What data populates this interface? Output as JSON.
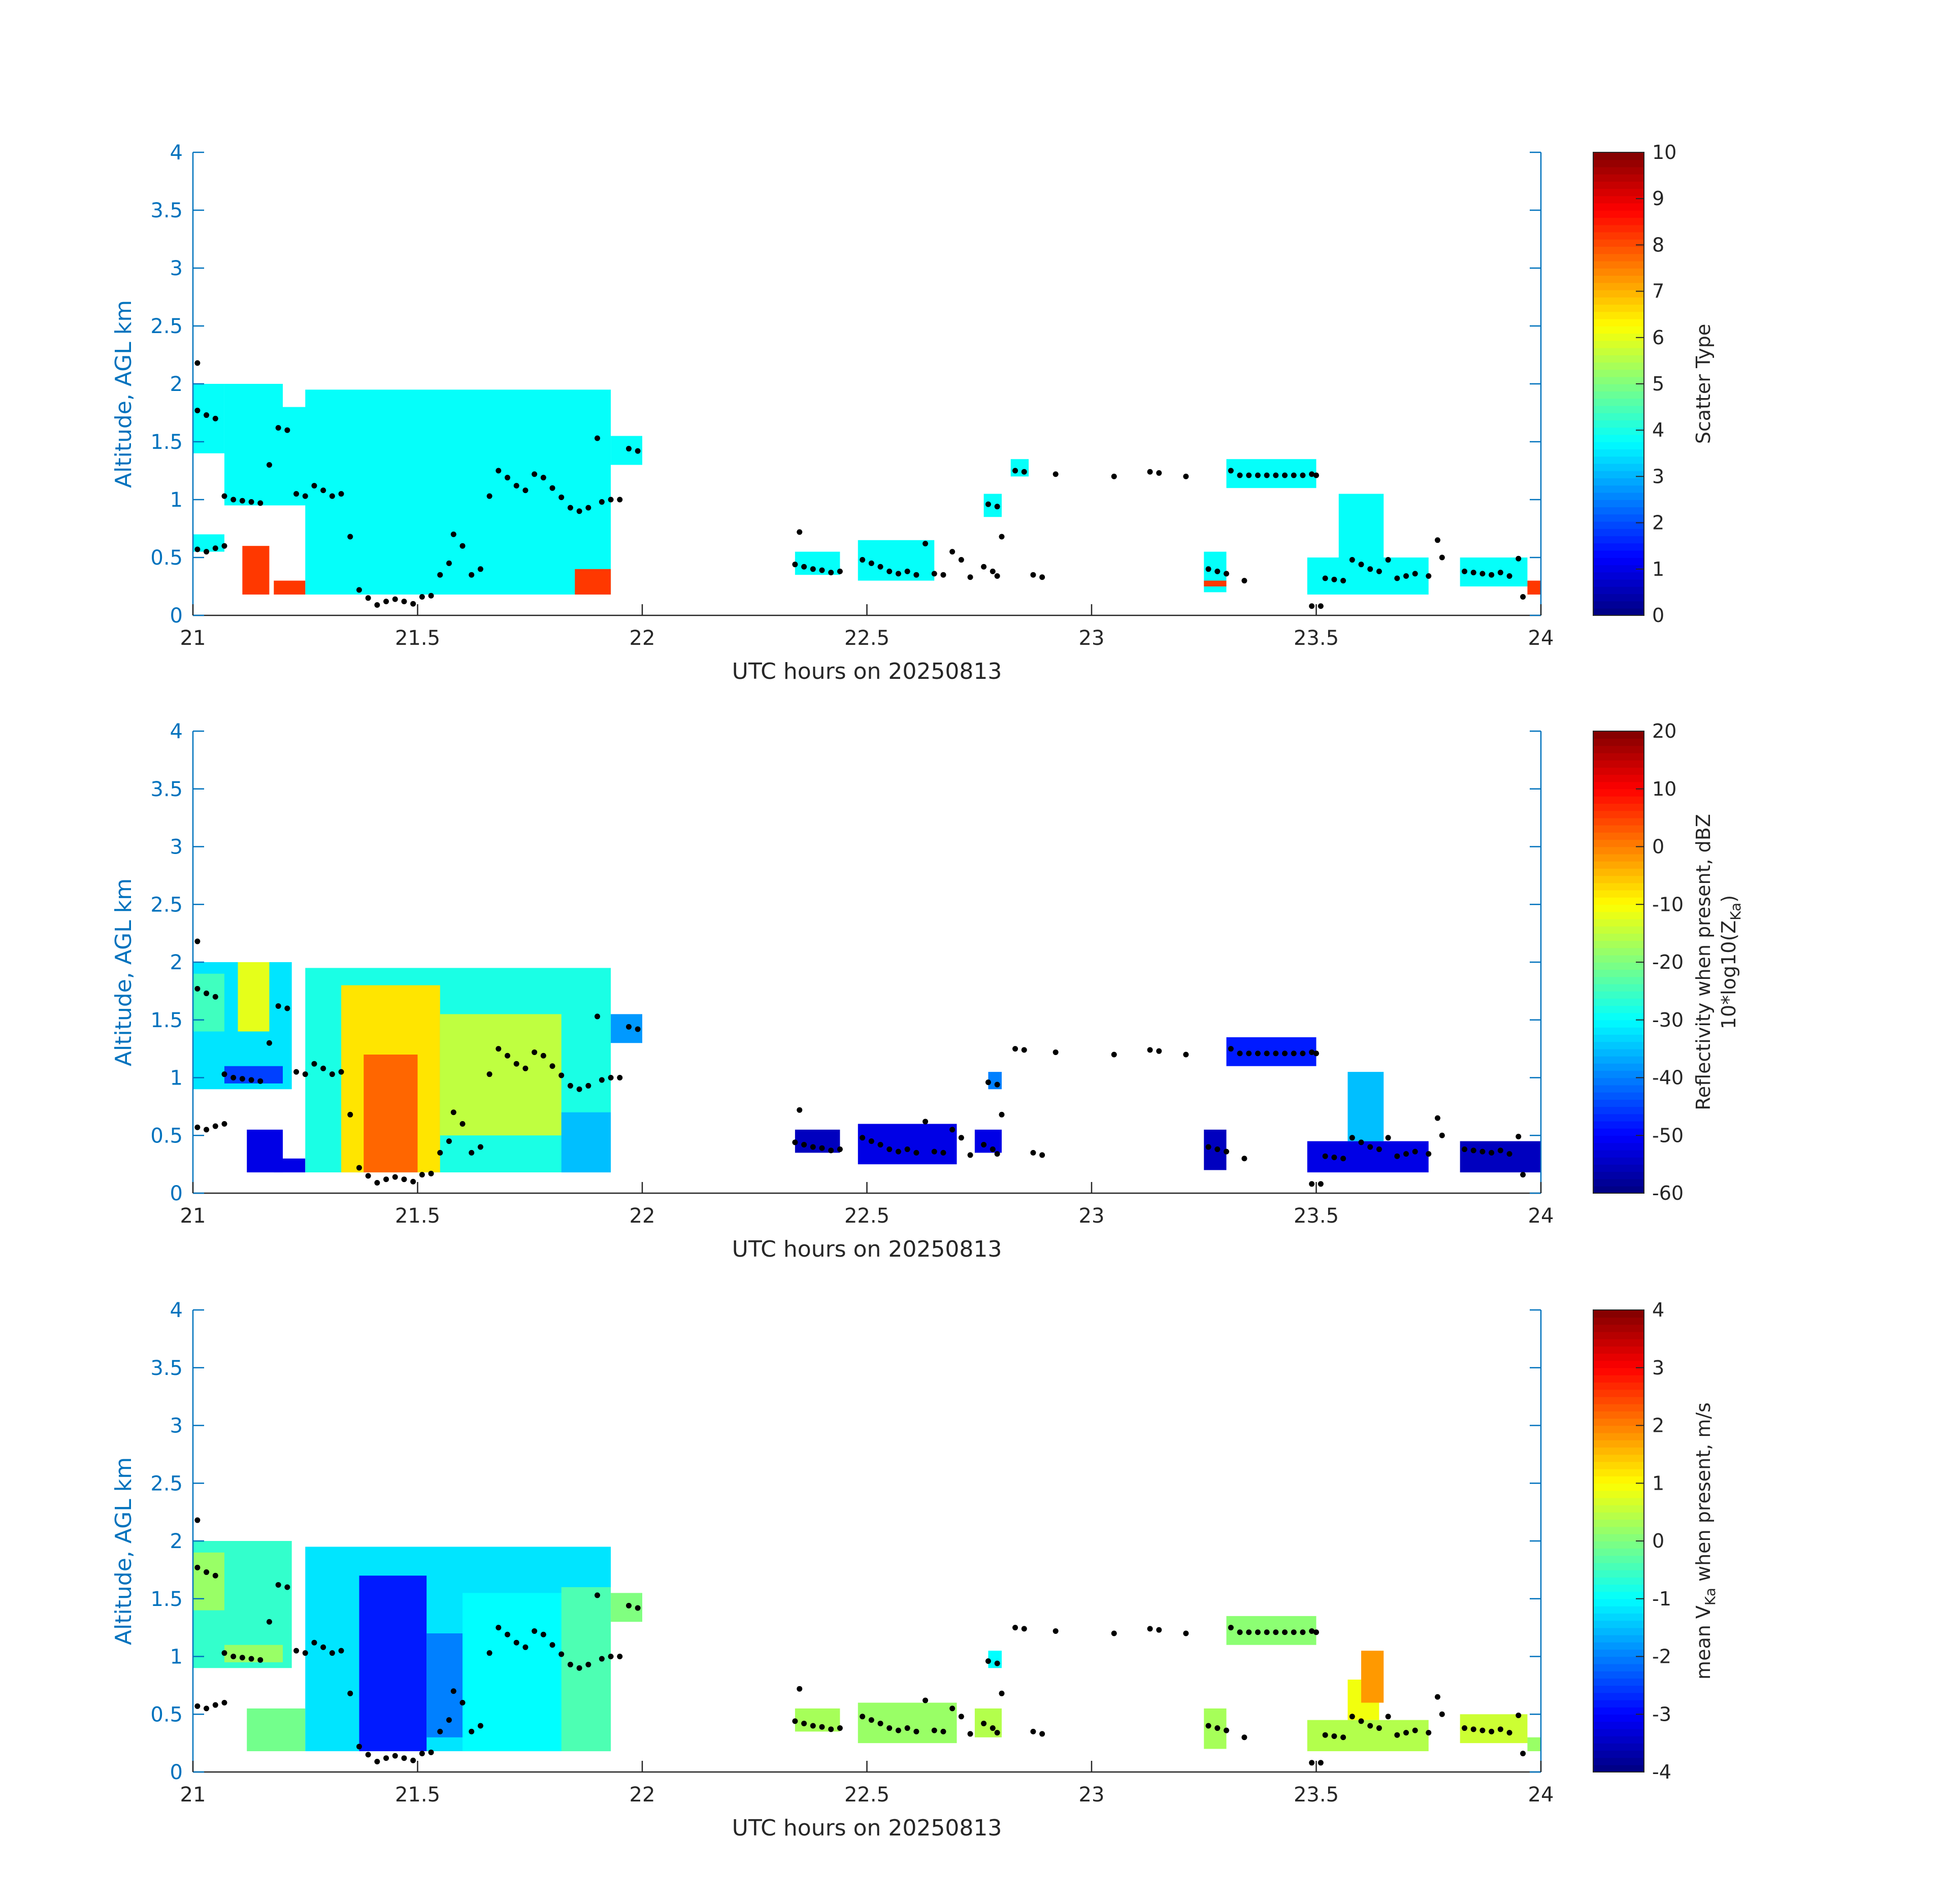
{
  "chart_data": [
    {
      "type": "heatmap",
      "title": "",
      "xlabel": "UTC hours on 20250813",
      "ylabel": "Altitude, AGL km",
      "xlim": [
        21,
        24
      ],
      "ylim": [
        0,
        4
      ],
      "xticks": [
        "21",
        "21.5",
        "22",
        "22.5",
        "23",
        "23.5",
        "24"
      ],
      "yticks": [
        "0",
        "0.5",
        "1",
        "1.5",
        "2",
        "2.5",
        "3",
        "3.5",
        "4"
      ],
      "colorbar": {
        "label": "Scatter Type",
        "range": [
          0,
          10
        ],
        "ticks": [
          "0",
          "1",
          "2",
          "3",
          "4",
          "5",
          "6",
          "7",
          "8",
          "9",
          "10"
        ],
        "colormap": "jet"
      },
      "regions": [
        {
          "t0": 21.0,
          "t1": 21.07,
          "z0": 1.4,
          "z1": 2.0,
          "v": 3.8
        },
        {
          "t0": 21.0,
          "t1": 21.07,
          "z0": 0.55,
          "z1": 0.7,
          "v": 3.8
        },
        {
          "t0": 21.07,
          "t1": 21.2,
          "z0": 0.95,
          "z1": 2.0,
          "v": 3.8
        },
        {
          "t0": 21.2,
          "t1": 21.35,
          "z0": 0.95,
          "z1": 1.8,
          "v": 3.8
        },
        {
          "t0": 21.25,
          "t1": 21.93,
          "z0": 0.18,
          "z1": 1.95,
          "v": 3.8
        },
        {
          "t0": 21.93,
          "t1": 22.0,
          "z0": 1.3,
          "z1": 1.55,
          "v": 3.8
        },
        {
          "t0": 21.11,
          "t1": 21.17,
          "z0": 0.18,
          "z1": 0.6,
          "v": 8.2
        },
        {
          "t0": 21.18,
          "t1": 21.25,
          "z0": 0.18,
          "z1": 0.3,
          "v": 8.2
        },
        {
          "t0": 21.85,
          "t1": 21.93,
          "z0": 0.18,
          "z1": 0.4,
          "v": 8.2
        },
        {
          "t0": 22.34,
          "t1": 22.44,
          "z0": 0.35,
          "z1": 0.55,
          "v": 3.8
        },
        {
          "t0": 22.48,
          "t1": 22.65,
          "z0": 0.3,
          "z1": 0.65,
          "v": 3.8
        },
        {
          "t0": 22.76,
          "t1": 22.8,
          "z0": 0.85,
          "z1": 1.05,
          "v": 3.8
        },
        {
          "t0": 22.82,
          "t1": 22.86,
          "z0": 1.2,
          "z1": 1.35,
          "v": 3.8
        },
        {
          "t0": 23.25,
          "t1": 23.3,
          "z0": 0.2,
          "z1": 0.55,
          "v": 3.8
        },
        {
          "t0": 23.3,
          "t1": 23.5,
          "z0": 1.1,
          "z1": 1.35,
          "v": 3.8
        },
        {
          "t0": 23.48,
          "t1": 23.75,
          "z0": 0.18,
          "z1": 0.5,
          "v": 3.8
        },
        {
          "t0": 23.55,
          "t1": 23.65,
          "z0": 0.5,
          "z1": 1.05,
          "v": 3.8
        },
        {
          "t0": 23.82,
          "t1": 23.97,
          "z0": 0.25,
          "z1": 0.5,
          "v": 3.8
        },
        {
          "t0": 23.25,
          "t1": 23.3,
          "z0": 0.25,
          "z1": 0.3,
          "v": 8.2
        },
        {
          "t0": 23.97,
          "t1": 24.0,
          "z0": 0.18,
          "z1": 0.3,
          "v": 8.2
        }
      ]
    },
    {
      "type": "heatmap",
      "title": "",
      "xlabel": "UTC hours on 20250813",
      "ylabel": "Altitude, AGL km",
      "xlim": [
        21,
        24
      ],
      "ylim": [
        0,
        4
      ],
      "xticks": [
        "21",
        "21.5",
        "22",
        "22.5",
        "23",
        "23.5",
        "24"
      ],
      "yticks": [
        "0",
        "0.5",
        "1",
        "1.5",
        "2",
        "2.5",
        "3",
        "3.5",
        "4"
      ],
      "colorbar": {
        "label": "Reflectivity when present, dBZ",
        "label2": "10*log10(Z",
        "label2_sub": "Ka",
        "label2_end": ")",
        "range": [
          -60,
          20
        ],
        "ticks": [
          "-60",
          "-50",
          "-40",
          "-30",
          "-20",
          "-10",
          "0",
          "10",
          "20"
        ],
        "colormap": "jet"
      },
      "regions": [
        {
          "t0": 21.0,
          "t1": 21.22,
          "z0": 0.9,
          "z1": 2.0,
          "v": -32
        },
        {
          "t0": 21.0,
          "t1": 21.07,
          "z0": 1.4,
          "z1": 1.9,
          "v": -25
        },
        {
          "t0": 21.1,
          "t1": 21.17,
          "z0": 1.4,
          "z1": 2.0,
          "v": -12
        },
        {
          "t0": 21.07,
          "t1": 21.2,
          "z0": 0.95,
          "z1": 1.1,
          "v": -45
        },
        {
          "t0": 21.12,
          "t1": 21.2,
          "z0": 0.18,
          "z1": 0.55,
          "v": -52
        },
        {
          "t0": 21.18,
          "t1": 21.25,
          "z0": 0.18,
          "z1": 0.3,
          "v": -52
        },
        {
          "t0": 21.25,
          "t1": 21.93,
          "z0": 0.18,
          "z1": 1.95,
          "v": -28
        },
        {
          "t0": 21.33,
          "t1": 21.55,
          "z0": 0.18,
          "z1": 1.8,
          "v": -8
        },
        {
          "t0": 21.38,
          "t1": 21.5,
          "z0": 0.18,
          "z1": 1.2,
          "v": 2
        },
        {
          "t0": 21.55,
          "t1": 21.82,
          "z0": 0.5,
          "z1": 1.55,
          "v": -15
        },
        {
          "t0": 21.82,
          "t1": 21.93,
          "z0": 0.18,
          "z1": 0.7,
          "v": -35
        },
        {
          "t0": 21.93,
          "t1": 22.0,
          "z0": 1.3,
          "z1": 1.55,
          "v": -38
        },
        {
          "t0": 22.34,
          "t1": 22.44,
          "z0": 0.35,
          "z1": 0.55,
          "v": -55
        },
        {
          "t0": 22.48,
          "t1": 22.7,
          "z0": 0.25,
          "z1": 0.6,
          "v": -52
        },
        {
          "t0": 22.74,
          "t1": 22.8,
          "z0": 0.35,
          "z1": 0.55,
          "v": -52
        },
        {
          "t0": 22.77,
          "t1": 22.8,
          "z0": 0.9,
          "z1": 1.05,
          "v": -40
        },
        {
          "t0": 23.25,
          "t1": 23.3,
          "z0": 0.2,
          "z1": 0.55,
          "v": -55
        },
        {
          "t0": 23.3,
          "t1": 23.5,
          "z0": 1.1,
          "z1": 1.35,
          "v": -48
        },
        {
          "t0": 23.48,
          "t1": 23.75,
          "z0": 0.18,
          "z1": 0.45,
          "v": -52
        },
        {
          "t0": 23.57,
          "t1": 23.65,
          "z0": 0.45,
          "z1": 1.05,
          "v": -35
        },
        {
          "t0": 23.82,
          "t1": 24.0,
          "z0": 0.18,
          "z1": 0.45,
          "v": -55
        }
      ]
    },
    {
      "type": "heatmap",
      "title": "",
      "xlabel": "UTC hours on 20250813",
      "ylabel": "Altitude, AGL km",
      "xlim": [
        21,
        24
      ],
      "ylim": [
        0,
        4
      ],
      "xticks": [
        "21",
        "21.5",
        "22",
        "22.5",
        "23",
        "23.5",
        "24"
      ],
      "yticks": [
        "0",
        "0.5",
        "1",
        "1.5",
        "2",
        "2.5",
        "3",
        "3.5",
        "4"
      ],
      "colorbar": {
        "label_pre": "mean V",
        "label_sub": "Ka",
        "label_post": " when present, m/s",
        "range": [
          -4,
          4
        ],
        "ticks": [
          "-4",
          "-3",
          "-2",
          "-1",
          "0",
          "1",
          "2",
          "3",
          "4"
        ],
        "colormap": "jet"
      },
      "regions": [
        {
          "t0": 21.0,
          "t1": 21.22,
          "z0": 0.9,
          "z1": 2.0,
          "v": -0.6
        },
        {
          "t0": 21.0,
          "t1": 21.07,
          "z0": 1.4,
          "z1": 1.9,
          "v": 0.2
        },
        {
          "t0": 21.07,
          "t1": 21.2,
          "z0": 0.95,
          "z1": 1.1,
          "v": 0.2
        },
        {
          "t0": 21.12,
          "t1": 21.25,
          "z0": 0.18,
          "z1": 0.55,
          "v": -0.1
        },
        {
          "t0": 21.25,
          "t1": 21.93,
          "z0": 0.18,
          "z1": 1.95,
          "v": -1.2
        },
        {
          "t0": 21.37,
          "t1": 21.52,
          "z0": 0.18,
          "z1": 1.7,
          "v": -2.8
        },
        {
          "t0": 21.52,
          "t1": 21.6,
          "z0": 0.3,
          "z1": 1.2,
          "v": -2.0
        },
        {
          "t0": 21.6,
          "t1": 21.82,
          "z0": 0.18,
          "z1": 1.55,
          "v": -1.0
        },
        {
          "t0": 21.82,
          "t1": 21.93,
          "z0": 0.18,
          "z1": 1.6,
          "v": -0.4
        },
        {
          "t0": 21.93,
          "t1": 22.0,
          "z0": 1.3,
          "z1": 1.55,
          "v": 0.0
        },
        {
          "t0": 22.34,
          "t1": 22.44,
          "z0": 0.35,
          "z1": 0.55,
          "v": 0.3
        },
        {
          "t0": 22.48,
          "t1": 22.7,
          "z0": 0.25,
          "z1": 0.6,
          "v": 0.2
        },
        {
          "t0": 22.74,
          "t1": 22.8,
          "z0": 0.3,
          "z1": 0.55,
          "v": 0.4
        },
        {
          "t0": 22.77,
          "t1": 22.8,
          "z0": 0.9,
          "z1": 1.05,
          "v": -1.0
        },
        {
          "t0": 23.25,
          "t1": 23.3,
          "z0": 0.2,
          "z1": 0.55,
          "v": 0.3
        },
        {
          "t0": 23.3,
          "t1": 23.5,
          "z0": 1.1,
          "z1": 1.35,
          "v": 0.1
        },
        {
          "t0": 23.48,
          "t1": 23.75,
          "z0": 0.18,
          "z1": 0.45,
          "v": 0.4
        },
        {
          "t0": 23.57,
          "t1": 23.64,
          "z0": 0.45,
          "z1": 0.8,
          "v": 0.9
        },
        {
          "t0": 23.6,
          "t1": 23.65,
          "z0": 0.6,
          "z1": 1.05,
          "v": 1.8
        },
        {
          "t0": 23.82,
          "t1": 23.97,
          "z0": 0.25,
          "z1": 0.5,
          "v": 0.6
        },
        {
          "t0": 23.97,
          "t1": 24.0,
          "z0": 0.18,
          "z1": 0.3,
          "v": 0.2
        }
      ]
    }
  ],
  "marker_points": [
    [
      21.01,
      2.18
    ],
    [
      21.01,
      1.77
    ],
    [
      21.03,
      1.73
    ],
    [
      21.05,
      1.7
    ],
    [
      21.01,
      0.57
    ],
    [
      21.03,
      0.55
    ],
    [
      21.05,
      0.58
    ],
    [
      21.07,
      0.6
    ],
    [
      21.07,
      1.03
    ],
    [
      21.09,
      1.0
    ],
    [
      21.11,
      0.99
    ],
    [
      21.13,
      0.98
    ],
    [
      21.15,
      0.97
    ],
    [
      21.17,
      1.3
    ],
    [
      21.19,
      1.62
    ],
    [
      21.21,
      1.6
    ],
    [
      21.23,
      1.05
    ],
    [
      21.25,
      1.03
    ],
    [
      21.27,
      1.12
    ],
    [
      21.29,
      1.08
    ],
    [
      21.31,
      1.03
    ],
    [
      21.33,
      1.05
    ],
    [
      21.35,
      0.68
    ],
    [
      21.37,
      0.22
    ],
    [
      21.39,
      0.15
    ],
    [
      21.41,
      0.09
    ],
    [
      21.43,
      0.12
    ],
    [
      21.45,
      0.14
    ],
    [
      21.47,
      0.12
    ],
    [
      21.49,
      0.1
    ],
    [
      21.51,
      0.16
    ],
    [
      21.53,
      0.17
    ],
    [
      21.55,
      0.35
    ],
    [
      21.57,
      0.45
    ],
    [
      21.58,
      0.7
    ],
    [
      21.6,
      0.6
    ],
    [
      21.62,
      0.35
    ],
    [
      21.64,
      0.4
    ],
    [
      21.66,
      1.03
    ],
    [
      21.68,
      1.25
    ],
    [
      21.7,
      1.19
    ],
    [
      21.72,
      1.12
    ],
    [
      21.74,
      1.08
    ],
    [
      21.76,
      1.22
    ],
    [
      21.78,
      1.19
    ],
    [
      21.8,
      1.1
    ],
    [
      21.82,
      1.02
    ],
    [
      21.84,
      0.93
    ],
    [
      21.86,
      0.9
    ],
    [
      21.88,
      0.93
    ],
    [
      21.9,
      1.53
    ],
    [
      21.91,
      0.98
    ],
    [
      21.93,
      1.0
    ],
    [
      21.95,
      1.0
    ],
    [
      21.97,
      1.44
    ],
    [
      21.99,
      1.42
    ],
    [
      22.35,
      0.72
    ],
    [
      22.34,
      0.44
    ],
    [
      22.36,
      0.42
    ],
    [
      22.38,
      0.4
    ],
    [
      22.4,
      0.39
    ],
    [
      22.42,
      0.37
    ],
    [
      22.44,
      0.38
    ],
    [
      22.49,
      0.48
    ],
    [
      22.51,
      0.45
    ],
    [
      22.53,
      0.42
    ],
    [
      22.55,
      0.38
    ],
    [
      22.57,
      0.36
    ],
    [
      22.59,
      0.38
    ],
    [
      22.61,
      0.35
    ],
    [
      22.63,
      0.62
    ],
    [
      22.65,
      0.36
    ],
    [
      22.67,
      0.35
    ],
    [
      22.69,
      0.55
    ],
    [
      22.71,
      0.48
    ],
    [
      22.73,
      0.33
    ],
    [
      22.76,
      0.42
    ],
    [
      22.78,
      0.38
    ],
    [
      22.79,
      0.34
    ],
    [
      22.8,
      0.68
    ],
    [
      22.77,
      0.96
    ],
    [
      22.79,
      0.94
    ],
    [
      22.83,
      1.25
    ],
    [
      22.85,
      1.24
    ],
    [
      22.87,
      0.35
    ],
    [
      22.89,
      0.33
    ],
    [
      22.92,
      1.22
    ],
    [
      23.05,
      1.2
    ],
    [
      23.13,
      1.24
    ],
    [
      23.15,
      1.23
    ],
    [
      23.21,
      1.2
    ],
    [
      23.26,
      0.4
    ],
    [
      23.28,
      0.38
    ],
    [
      23.3,
      0.36
    ],
    [
      23.34,
      0.3
    ],
    [
      23.31,
      1.25
    ],
    [
      23.33,
      1.21
    ],
    [
      23.35,
      1.21
    ],
    [
      23.37,
      1.21
    ],
    [
      23.39,
      1.21
    ],
    [
      23.41,
      1.21
    ],
    [
      23.43,
      1.21
    ],
    [
      23.45,
      1.21
    ],
    [
      23.47,
      1.21
    ],
    [
      23.49,
      1.22
    ],
    [
      23.5,
      1.21
    ],
    [
      23.49,
      0.08
    ],
    [
      23.51,
      0.08
    ],
    [
      23.52,
      0.32
    ],
    [
      23.54,
      0.31
    ],
    [
      23.56,
      0.3
    ],
    [
      23.58,
      0.48
    ],
    [
      23.6,
      0.44
    ],
    [
      23.62,
      0.4
    ],
    [
      23.64,
      0.38
    ],
    [
      23.66,
      0.48
    ],
    [
      23.68,
      0.32
    ],
    [
      23.7,
      0.34
    ],
    [
      23.72,
      0.36
    ],
    [
      23.75,
      0.34
    ],
    [
      23.77,
      0.65
    ],
    [
      23.78,
      0.5
    ],
    [
      23.83,
      0.38
    ],
    [
      23.85,
      0.37
    ],
    [
      23.87,
      0.36
    ],
    [
      23.89,
      0.35
    ],
    [
      23.91,
      0.37
    ],
    [
      23.93,
      0.34
    ],
    [
      23.95,
      0.49
    ],
    [
      23.96,
      0.16
    ]
  ]
}
